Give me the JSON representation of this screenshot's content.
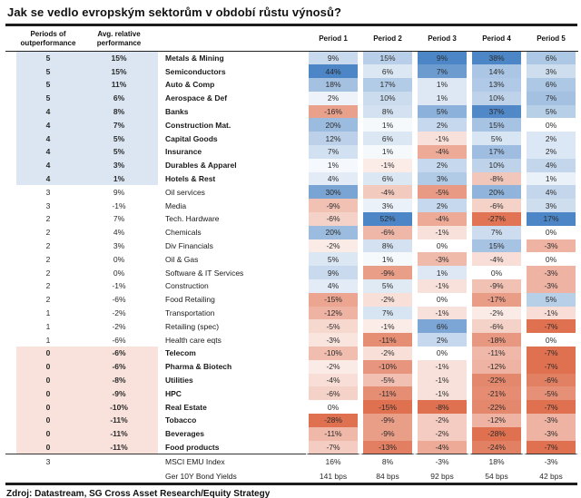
{
  "title": "Jak se vedlo evropským sektorům v období růstu výnosů?",
  "source": "Zdroj: Datastream, SG Cross Asset Research/Equity Strategy",
  "chart_data": {
    "type": "heatmap",
    "title": "Jak se vedlo evropským sektorům v období růstu výnosů?",
    "col_headers": {
      "periods": "Periods of outperformance",
      "avg": "Avg. relative performance"
    },
    "period_columns": [
      "Period 1",
      "Period 2",
      "Period 3",
      "Period 4",
      "Period 5"
    ],
    "value_suffix": "%",
    "color_scale": {
      "positive_max": "#4d86c6",
      "negative_max": "#df7050",
      "neutral": "#ffffff",
      "note": "per-column normalization: column max = full blue, column min = full red"
    },
    "row_shading": {
      "high": "#dbe6f2",
      "low": "#f8e2db"
    },
    "rows": [
      {
        "periods": "5",
        "avg": "15%",
        "sector": "Metals & Mining",
        "values": [
          9,
          15,
          9,
          38,
          6
        ]
      },
      {
        "periods": "5",
        "avg": "15%",
        "sector": "Semiconductors",
        "values": [
          44,
          6,
          7,
          14,
          3
        ]
      },
      {
        "periods": "5",
        "avg": "11%",
        "sector": "Auto & Comp",
        "values": [
          18,
          17,
          1,
          13,
          6
        ]
      },
      {
        "periods": "5",
        "avg": "6%",
        "sector": "Aerospace & Def",
        "values": [
          2,
          10,
          1,
          10,
          7
        ]
      },
      {
        "periods": "4",
        "avg": "8%",
        "sector": "Banks",
        "values": [
          -16,
          8,
          5,
          37,
          5
        ]
      },
      {
        "periods": "4",
        "avg": "7%",
        "sector": "Construction Mat.",
        "values": [
          20,
          1,
          2,
          15,
          0
        ]
      },
      {
        "periods": "4",
        "avg": "5%",
        "sector": "Capital Goods",
        "values": [
          12,
          6,
          -1,
          5,
          2
        ]
      },
      {
        "periods": "4",
        "avg": "5%",
        "sector": "Insurance",
        "values": [
          7,
          1,
          -4,
          17,
          2
        ]
      },
      {
        "periods": "4",
        "avg": "3%",
        "sector": "Durables & Apparel",
        "values": [
          1,
          -1,
          2,
          10,
          4
        ]
      },
      {
        "periods": "4",
        "avg": "1%",
        "sector": "Hotels & Rest",
        "values": [
          4,
          6,
          3,
          -8,
          1
        ]
      },
      {
        "periods": "3",
        "avg": "9%",
        "sector": "Oil services",
        "values": [
          30,
          -4,
          -5,
          20,
          4
        ]
      },
      {
        "periods": "3",
        "avg": "-1%",
        "sector": "Media",
        "values": [
          -9,
          3,
          2,
          -6,
          3
        ]
      },
      {
        "periods": "2",
        "avg": "7%",
        "sector": "Tech. Hardware",
        "values": [
          -6,
          52,
          -4,
          -27,
          17
        ]
      },
      {
        "periods": "2",
        "avg": "4%",
        "sector": "Chemicals",
        "values": [
          20,
          -6,
          -1,
          7,
          0
        ]
      },
      {
        "periods": "2",
        "avg": "3%",
        "sector": "Div Financials",
        "values": [
          -2,
          8,
          0,
          15,
          -3
        ]
      },
      {
        "periods": "2",
        "avg": "0%",
        "sector": "Oil & Gas",
        "values": [
          5,
          1,
          -3,
          -4,
          0
        ]
      },
      {
        "periods": "2",
        "avg": "0%",
        "sector": "Software & IT Services",
        "values": [
          9,
          -9,
          1,
          0,
          -3
        ]
      },
      {
        "periods": "2",
        "avg": "-1%",
        "sector": "Construction",
        "values": [
          4,
          5,
          -1,
          -9,
          -3
        ]
      },
      {
        "periods": "2",
        "avg": "-6%",
        "sector": "Food Retailing",
        "values": [
          -15,
          -2,
          0,
          -17,
          5
        ]
      },
      {
        "periods": "1",
        "avg": "-2%",
        "sector": "Transportation",
        "values": [
          -12,
          7,
          -1,
          -2,
          -1
        ]
      },
      {
        "periods": "1",
        "avg": "-2%",
        "sector": "Retailing (spec)",
        "values": [
          -5,
          -1,
          6,
          -6,
          -7
        ]
      },
      {
        "periods": "1",
        "avg": "-6%",
        "sector": "Health care eqts",
        "values": [
          -3,
          -11,
          2,
          -18,
          0
        ]
      },
      {
        "periods": "0",
        "avg": "-6%",
        "sector": "Telecom",
        "values": [
          -10,
          -2,
          0,
          -11,
          -7
        ]
      },
      {
        "periods": "0",
        "avg": "-6%",
        "sector": "Pharma & Biotech",
        "values": [
          -2,
          -10,
          -1,
          -12,
          -7
        ]
      },
      {
        "periods": "0",
        "avg": "-8%",
        "sector": "Utilities",
        "values": [
          -4,
          -5,
          -1,
          -22,
          -6
        ]
      },
      {
        "periods": "0",
        "avg": "-9%",
        "sector": "HPC",
        "values": [
          -6,
          -11,
          -1,
          -21,
          -5
        ]
      },
      {
        "periods": "0",
        "avg": "-10%",
        "sector": "Real Estate",
        "values": [
          0,
          -15,
          -8,
          -22,
          -7
        ]
      },
      {
        "periods": "0",
        "avg": "-11%",
        "sector": "Tobacco",
        "values": [
          -28,
          -9,
          -2,
          -12,
          -3
        ]
      },
      {
        "periods": "0",
        "avg": "-11%",
        "sector": "Beverages",
        "values": [
          -11,
          -9,
          -2,
          -28,
          -3
        ]
      },
      {
        "periods": "0",
        "avg": "-11%",
        "sector": "Food products",
        "values": [
          -7,
          -13,
          -4,
          -24,
          -7
        ]
      }
    ],
    "footer_rows": [
      {
        "periods": "3",
        "avg": "",
        "sector": "MSCI EMU Index",
        "values": [
          "16%",
          "8%",
          "-3%",
          "18%",
          "-3%"
        ]
      },
      {
        "periods": "",
        "avg": "",
        "sector": "Ger 10Y Bond Yields",
        "values": [
          "141 bps",
          "84 bps",
          "92 bps",
          "54 bps",
          "42 bps"
        ]
      }
    ]
  }
}
